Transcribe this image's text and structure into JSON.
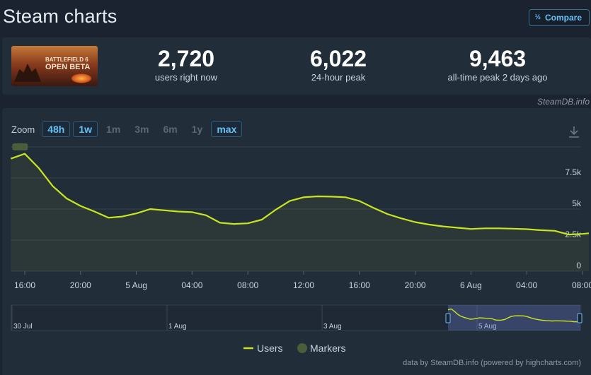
{
  "page": {
    "title": "Steam charts"
  },
  "compare": {
    "label": "Compare",
    "icon": "fraction-icon"
  },
  "game": {
    "thumbnail_lines": [
      "BATTLEFIELD 6",
      "OPEN BETA"
    ]
  },
  "stats": [
    {
      "value": "2,720",
      "label": "users right now"
    },
    {
      "value": "6,022",
      "label": "24-hour peak"
    },
    {
      "value": "9,463",
      "label": "all-time peak 2 days ago"
    }
  ],
  "credit_top": "SteamDB.info",
  "zoom": {
    "label": "Zoom",
    "buttons": [
      {
        "label": "48h",
        "active": true
      },
      {
        "label": "1w",
        "active": true
      },
      {
        "label": "1m",
        "active": false
      },
      {
        "label": "3m",
        "active": false
      },
      {
        "label": "6m",
        "active": false
      },
      {
        "label": "1y",
        "active": false
      },
      {
        "label": "max",
        "active": true
      }
    ]
  },
  "chart_data": {
    "type": "line",
    "series": [
      {
        "name": "Users",
        "color": "#c8e61e",
        "x": [
          "15:00",
          "16:00",
          "17:00",
          "18:00",
          "19:00",
          "20:00",
          "21:00",
          "22:00",
          "23:00",
          "5 Aug",
          "01:00",
          "02:00",
          "03:00",
          "04:00",
          "05:00",
          "06:00",
          "07:00",
          "08:00",
          "09:00",
          "10:00",
          "11:00",
          "12:00",
          "13:00",
          "14:00",
          "15:00",
          "16:00",
          "17:00",
          "18:00",
          "19:00",
          "20:00",
          "21:00",
          "22:00",
          "23:00",
          "6 Aug",
          "01:00",
          "02:00",
          "03:00",
          "04:00",
          "05:00",
          "06:00",
          "07:00",
          "08:00",
          "09:00"
        ],
        "values": [
          9050,
          9450,
          8300,
          6850,
          5850,
          5250,
          4800,
          4300,
          4400,
          4650,
          5000,
          4900,
          4800,
          4750,
          4500,
          3900,
          3800,
          3850,
          4150,
          4950,
          5650,
          5950,
          6022,
          6000,
          5950,
          5650,
          5100,
          4600,
          4250,
          3950,
          3750,
          3600,
          3500,
          3400,
          3450,
          3450,
          3420,
          3380,
          3300,
          3250,
          2950,
          3000,
          3050
        ]
      }
    ],
    "markers": {
      "name": "Markers",
      "color": "#4b5d3a"
    },
    "x_ticks": [
      "16:00",
      "20:00",
      "5 Aug",
      "04:00",
      "08:00",
      "12:00",
      "16:00",
      "20:00",
      "6 Aug",
      "04:00",
      "08:00"
    ],
    "y_ticks": [
      "0",
      "2.5k",
      "5k",
      "7.5k"
    ],
    "ylim": [
      0,
      10000
    ],
    "grid": true,
    "legend_position": "bottom-center",
    "navigator": {
      "labels": [
        "30 Jul",
        "1 Aug",
        "3 Aug",
        "5 Aug"
      ]
    }
  },
  "legend": {
    "users": "Users",
    "markers": "Markers"
  },
  "credit_bottom": "data by SteamDB.info (powered by highcharts.com)"
}
